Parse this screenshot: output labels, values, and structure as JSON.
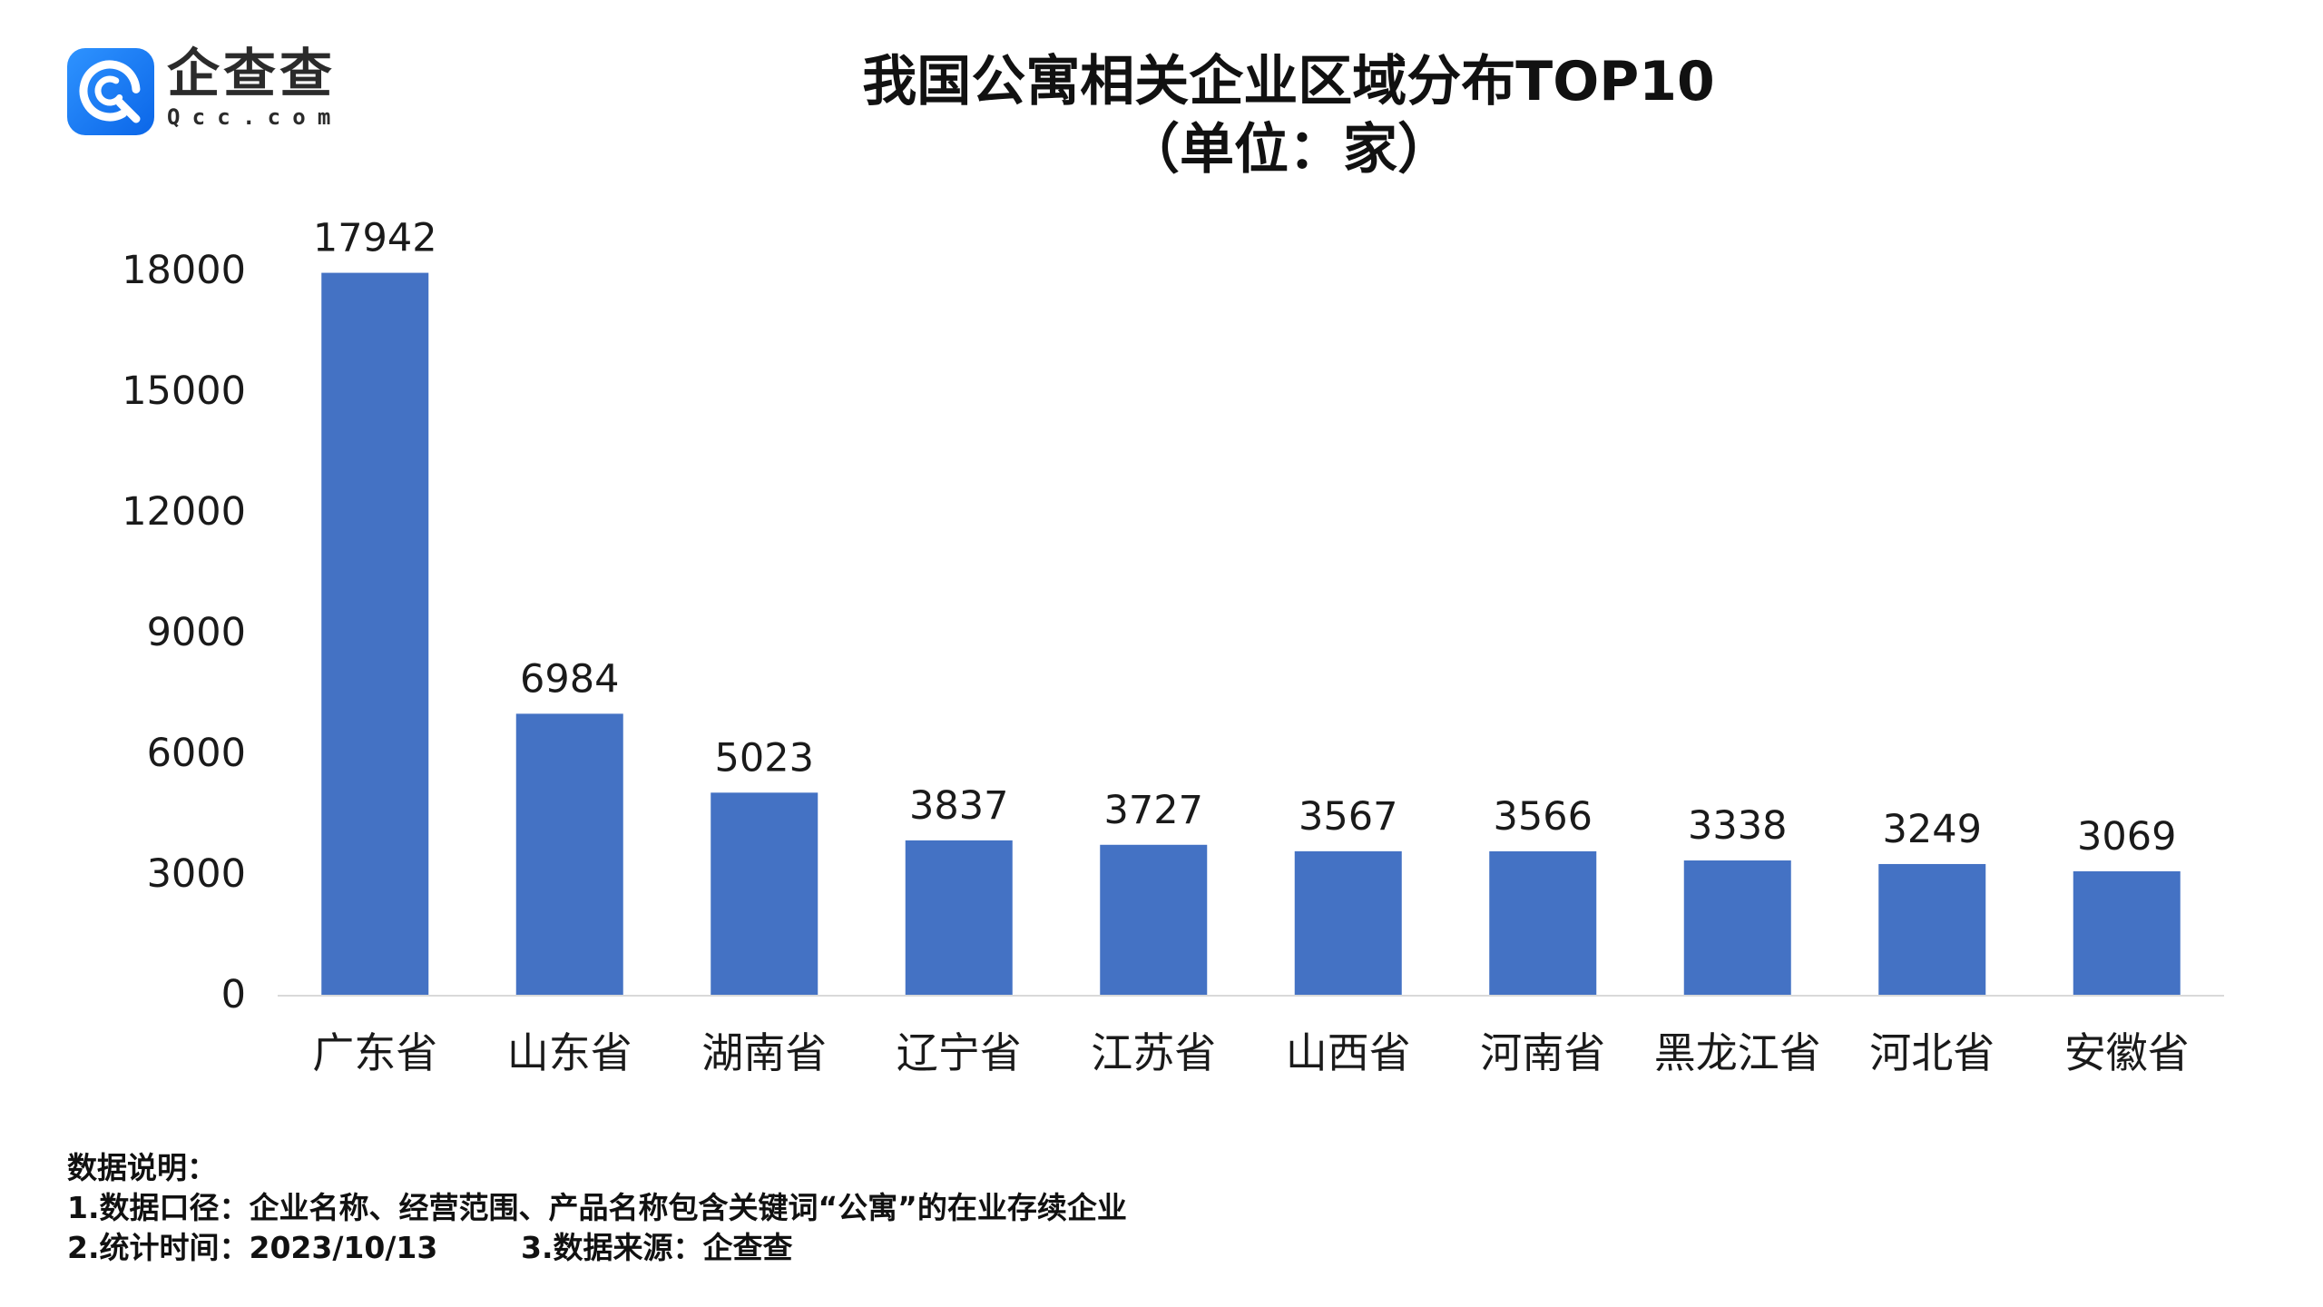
{
  "logo": {
    "name": "企查查",
    "domain": "Qcc.com",
    "icon": "qcc-logo-icon",
    "color": "#1E7BF5"
  },
  "chart_data": {
    "type": "bar",
    "title": "我国公寓相关企业区域分布TOP10",
    "subtitle": "（单位：家）",
    "categories": [
      "广东省",
      "山东省",
      "湖南省",
      "辽宁省",
      "江苏省",
      "山西省",
      "河南省",
      "黑龙江省",
      "河北省",
      "安徽省"
    ],
    "values": [
      17942,
      6984,
      5023,
      3837,
      3727,
      3567,
      3566,
      3338,
      3249,
      3069
    ],
    "yticks": [
      0,
      3000,
      6000,
      9000,
      12000,
      15000,
      18000
    ],
    "ylim": [
      0,
      18000
    ],
    "xlabel": "",
    "ylabel": "",
    "grid": false,
    "show_legend": false,
    "data_labels": true,
    "bar_color": "#4472C4",
    "axis_color": "#D9D9D9"
  },
  "notes": {
    "heading": "数据说明：",
    "scope": "1.数据口径：企业名称、经营范围、产品名称包含关键词“公寓”的在业存续企业",
    "date": "2.统计时间：2023/10/13",
    "source": "3.数据来源：企查查"
  }
}
